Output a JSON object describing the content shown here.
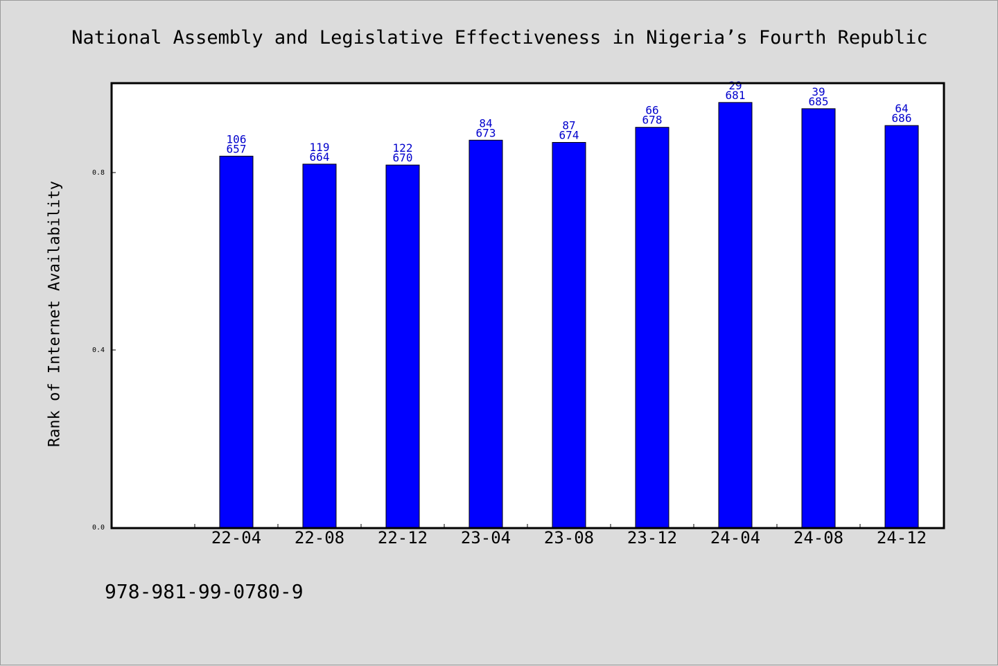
{
  "chart_data": {
    "type": "bar",
    "title": "National Assembly and Legislative Effectiveness in Nigeria’s Fourth Republic",
    "ylabel": "Rank of Internet Availability",
    "xlabel": "",
    "categories": [
      "22-04",
      "22-08",
      "22-12",
      "23-04",
      "23-08",
      "23-12",
      "24-04",
      "24-08",
      "24-12"
    ],
    "values": [
      0.837,
      0.819,
      0.817,
      0.873,
      0.868,
      0.902,
      0.958,
      0.944,
      0.906
    ],
    "label_top": [
      "106",
      "119",
      "122",
      "84",
      "87",
      "66",
      "29",
      "39",
      "64"
    ],
    "label_bottom": [
      "657",
      "664",
      "670",
      "673",
      "674",
      "678",
      "681",
      "685",
      "686"
    ],
    "ylim": [
      0,
      1.0
    ],
    "yticks": [
      "0.0",
      "0.4",
      "0.8"
    ],
    "bar_color": "#0000ff",
    "label_color": "#0000cc",
    "grid": false
  },
  "footer": {
    "isbn": "978-981-99-0780-9"
  }
}
